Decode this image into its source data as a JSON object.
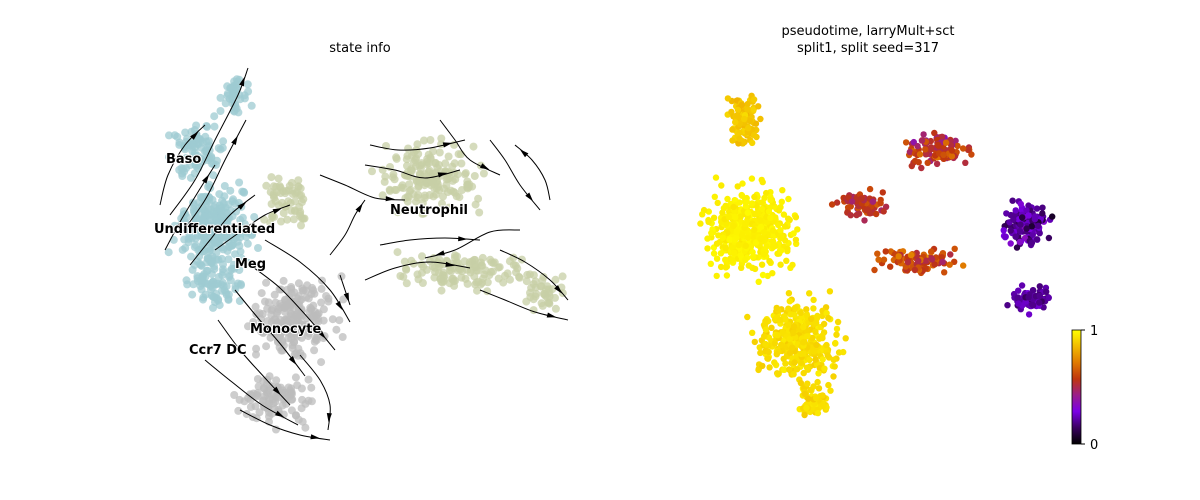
{
  "chart_data": [
    {
      "type": "scatter",
      "title": "state info",
      "colors": {
        "Undifferentiated": "#9ecbd1",
        "Baso": "#9ecbd1",
        "Meg": "#9ecbd1",
        "Neutrophil": "#c7cfa6",
        "Monocyte": "#bcbcbc",
        "Ccr7 DC": "#bcbcbc",
        "stream": "#000000"
      },
      "annotations": [
        {
          "text": "Baso"
        },
        {
          "text": "Undifferentiated"
        },
        {
          "text": "Meg"
        },
        {
          "text": "Neutrophil"
        },
        {
          "text": "Monocyte"
        },
        {
          "text": "Ccr7 DC"
        }
      ],
      "overlay": "velocity streamlines with arrowheads"
    },
    {
      "type": "scatter",
      "title": [
        "pseudotime, larryMult+sct",
        "split1, split seed=317"
      ],
      "colorbar": {
        "min": 0,
        "max": 1,
        "ticks": [
          "0",
          "1"
        ],
        "colormap": [
          "#000000",
          "#3a0060",
          "#7a00e6",
          "#9b1f8a",
          "#c0360e",
          "#e07a00",
          "#f2bb00",
          "#ffff00"
        ]
      },
      "pseudotime_by_region": [
        {
          "region": "top arm",
          "value": 0.88
        },
        {
          "region": "left core",
          "value": 0.97
        },
        {
          "region": "lower body",
          "value": 0.93
        },
        {
          "region": "upper branch",
          "value": 0.55
        },
        {
          "region": "lower branch",
          "value": 0.6
        },
        {
          "region": "right tip",
          "value": 0.2
        }
      ]
    }
  ]
}
